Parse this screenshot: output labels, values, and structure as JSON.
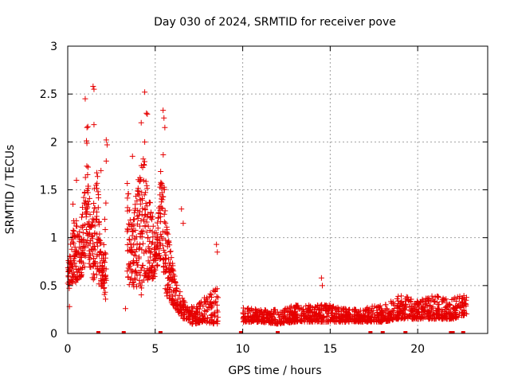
{
  "chart_data": {
    "type": "scatter",
    "title": "Day 030 of 2024, SRMTID for receiver pove",
    "xlabel": "GPS time / hours",
    "ylabel": "SRMTID / TECUs",
    "xlim": [
      0,
      24
    ],
    "ylim": [
      0,
      3
    ],
    "xticks": [
      0,
      5,
      10,
      15,
      20
    ],
    "xtick_labels": [
      "0",
      "5",
      "10",
      "15",
      "20"
    ],
    "yticks": [
      0,
      0.5,
      1,
      1.5,
      2,
      2.5,
      3
    ],
    "ytick_labels": [
      "0",
      "0.5",
      "1",
      "1.5",
      "2",
      "2.5",
      "3"
    ],
    "grid": true,
    "marker": "plus",
    "series": [
      {
        "name": "SRMTID",
        "color": "#e60000",
        "envelope": [
          [
            0.0,
            0.45,
            0.7
          ],
          [
            0.2,
            0.5,
            1.0
          ],
          [
            0.4,
            0.5,
            1.3
          ],
          [
            0.6,
            0.55,
            1.1
          ],
          [
            0.8,
            0.6,
            1.3
          ],
          [
            1.0,
            0.7,
            1.6
          ],
          [
            1.1,
            0.8,
            2.2
          ],
          [
            1.2,
            0.75,
            1.5
          ],
          [
            1.4,
            0.55,
            1.2
          ],
          [
            1.6,
            0.55,
            1.8
          ],
          [
            1.8,
            0.5,
            1.5
          ],
          [
            2.0,
            0.45,
            0.7
          ],
          [
            2.2,
            0.3,
            1.6
          ],
          [
            3.4,
            0.5,
            1.6
          ],
          [
            3.6,
            0.5,
            1.2
          ],
          [
            3.8,
            0.45,
            1.3
          ],
          [
            4.0,
            0.5,
            1.6
          ],
          [
            4.2,
            0.4,
            1.8
          ],
          [
            4.4,
            0.6,
            2.0
          ],
          [
            4.6,
            0.55,
            1.5
          ],
          [
            4.8,
            0.55,
            1.3
          ],
          [
            5.0,
            0.6,
            1.0
          ],
          [
            5.2,
            0.75,
            1.3
          ],
          [
            5.4,
            0.8,
            2.2
          ],
          [
            5.6,
            0.4,
            1.2
          ],
          [
            5.8,
            0.35,
            1.0
          ],
          [
            6.0,
            0.3,
            0.75
          ],
          [
            6.2,
            0.25,
            0.55
          ],
          [
            6.4,
            0.2,
            0.45
          ],
          [
            6.6,
            0.15,
            0.35
          ],
          [
            6.8,
            0.15,
            0.3
          ],
          [
            7.0,
            0.1,
            0.28
          ],
          [
            7.4,
            0.1,
            0.28
          ],
          [
            7.8,
            0.12,
            0.4
          ],
          [
            8.2,
            0.1,
            0.45
          ],
          [
            8.6,
            0.1,
            0.5
          ],
          [
            10.0,
            0.12,
            0.28
          ],
          [
            11.0,
            0.12,
            0.25
          ],
          [
            12.0,
            0.1,
            0.25
          ],
          [
            13.0,
            0.12,
            0.3
          ],
          [
            14.0,
            0.12,
            0.3
          ],
          [
            15.0,
            0.12,
            0.3
          ],
          [
            16.0,
            0.12,
            0.25
          ],
          [
            17.0,
            0.12,
            0.28
          ],
          [
            18.0,
            0.12,
            0.3
          ],
          [
            19.0,
            0.15,
            0.4
          ],
          [
            20.0,
            0.15,
            0.35
          ],
          [
            21.0,
            0.15,
            0.4
          ],
          [
            22.0,
            0.15,
            0.38
          ],
          [
            22.8,
            0.2,
            0.4
          ]
        ],
        "outliers": [
          [
            1.0,
            2.45
          ],
          [
            1.1,
            2.15
          ],
          [
            1.15,
            2.16
          ],
          [
            1.45,
            2.58
          ],
          [
            1.5,
            2.55
          ],
          [
            1.5,
            2.18
          ],
          [
            2.2,
            2.02
          ],
          [
            2.25,
            1.97
          ],
          [
            2.2,
            1.8
          ],
          [
            4.2,
            2.2
          ],
          [
            4.4,
            2.52
          ],
          [
            4.5,
            2.3
          ],
          [
            4.55,
            2.29
          ],
          [
            4.4,
            2.0
          ],
          [
            5.45,
            2.33
          ],
          [
            5.5,
            2.25
          ],
          [
            5.55,
            2.15
          ],
          [
            14.5,
            0.58
          ],
          [
            14.55,
            0.5
          ],
          [
            8.5,
            0.93
          ],
          [
            8.55,
            0.85
          ],
          [
            6.5,
            1.3
          ],
          [
            6.6,
            1.15
          ],
          [
            0.1,
            0.28
          ],
          [
            0.3,
            1.35
          ],
          [
            0.5,
            1.6
          ],
          [
            1.2,
            1.35
          ],
          [
            1.9,
            1.7
          ],
          [
            3.3,
            0.26
          ],
          [
            3.7,
            1.85
          ]
        ],
        "zero_points": [
          1.75,
          3.2,
          5.3,
          9.9,
          12.0,
          17.3,
          18.0,
          19.3,
          21.9,
          22.0,
          22.6
        ]
      }
    ]
  }
}
